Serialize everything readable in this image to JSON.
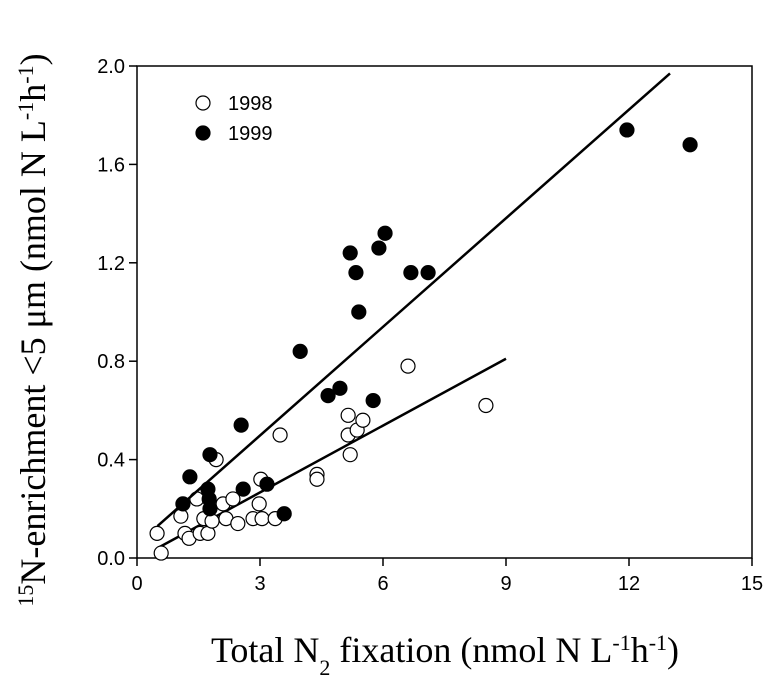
{
  "chart_data": {
    "type": "scatter",
    "x_label": [
      "Total N",
      "2",
      " fixation (nmol N L",
      "-1",
      "h",
      "-1",
      ")"
    ],
    "y_label": [
      "15",
      "N-enrichment <5 μm (nmol N L",
      "-1",
      "h",
      "-1",
      ")"
    ],
    "xlim": [
      0,
      15
    ],
    "ylim": [
      0,
      2
    ],
    "xticks": [
      0,
      3,
      6,
      9,
      12,
      15
    ],
    "yticks": [
      {
        "value": 0,
        "label": "0.0"
      },
      0.4,
      0.8,
      1.2,
      1.6,
      {
        "value": 2,
        "label": "2.0"
      }
    ],
    "legend": "upper left",
    "series": [
      {
        "name": "1998",
        "color": "#000000",
        "filled": false,
        "x": [
          0.49,
          0.59,
          1.07,
          1.17,
          1.27,
          1.46,
          1.54,
          1.63,
          1.73,
          1.83,
          1.93,
          2.1,
          2.17,
          2.34,
          2.46,
          2.83,
          2.98,
          3.02,
          3.05,
          3.37,
          3.49,
          4.39,
          4.39,
          5.15,
          5.15,
          5.2,
          5.37,
          5.51,
          6.61,
          8.51
        ],
        "values": [
          0.1,
          0.02,
          0.17,
          0.1,
          0.08,
          0.24,
          0.1,
          0.16,
          0.1,
          0.15,
          0.4,
          0.22,
          0.16,
          0.24,
          0.14,
          0.16,
          0.22,
          0.32,
          0.16,
          0.16,
          0.5,
          0.34,
          0.32,
          0.5,
          0.58,
          0.42,
          0.52,
          0.56,
          0.78,
          0.62
        ],
        "fit": {
          "x": [
            0.5,
            9.0
          ],
          "y": [
            0.04,
            0.81
          ]
        }
      },
      {
        "name": "1999",
        "color": "#000000",
        "filled": true,
        "x": [
          1.12,
          1.29,
          1.73,
          1.76,
          1.78,
          1.78,
          2.54,
          2.59,
          3.17,
          3.59,
          3.98,
          4.66,
          4.95,
          5.2,
          5.34,
          5.41,
          5.76,
          5.9,
          6.05,
          6.68,
          7.1,
          11.95,
          13.49
        ],
        "values": [
          0.22,
          0.33,
          0.28,
          0.24,
          0.42,
          0.2,
          0.54,
          0.28,
          0.3,
          0.18,
          0.84,
          0.66,
          0.69,
          1.24,
          1.16,
          1.0,
          0.64,
          1.26,
          1.32,
          1.16,
          1.16,
          1.74,
          1.68
        ],
        "fit": {
          "x": [
            0.5,
            13.0
          ],
          "y": [
            0.13,
            1.97
          ]
        }
      }
    ]
  }
}
